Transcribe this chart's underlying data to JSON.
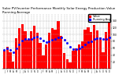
{
  "title": "Solar PV/Inverter Performance Monthly Solar Energy Production Value Running Average",
  "bars": [
    55,
    65,
    48,
    20,
    90,
    120,
    130,
    110,
    85,
    110,
    125,
    105,
    75,
    40,
    70,
    105,
    118,
    115,
    140,
    95,
    45,
    28,
    18,
    52,
    60,
    70,
    80,
    115,
    122,
    108,
    128,
    112,
    92,
    48,
    108,
    135
  ],
  "running_avg": [
    55,
    60,
    55,
    48,
    60,
    72,
    82,
    88,
    87,
    88,
    92,
    93,
    90,
    82,
    78,
    80,
    84,
    87,
    92,
    91,
    85,
    75,
    63,
    58,
    58,
    60,
    63,
    70,
    77,
    81,
    86,
    89,
    89,
    86,
    87,
    91
  ],
  "bar_color": "#ff0000",
  "avg_color": "#0000ff",
  "background": "#ffffff",
  "grid_color": "#aaaaaa",
  "ylim": [
    0,
    160
  ],
  "yticks": [
    20,
    40,
    60,
    80,
    100,
    120,
    140
  ],
  "title_fontsize": 3.0,
  "legend_fontsize": 2.5
}
